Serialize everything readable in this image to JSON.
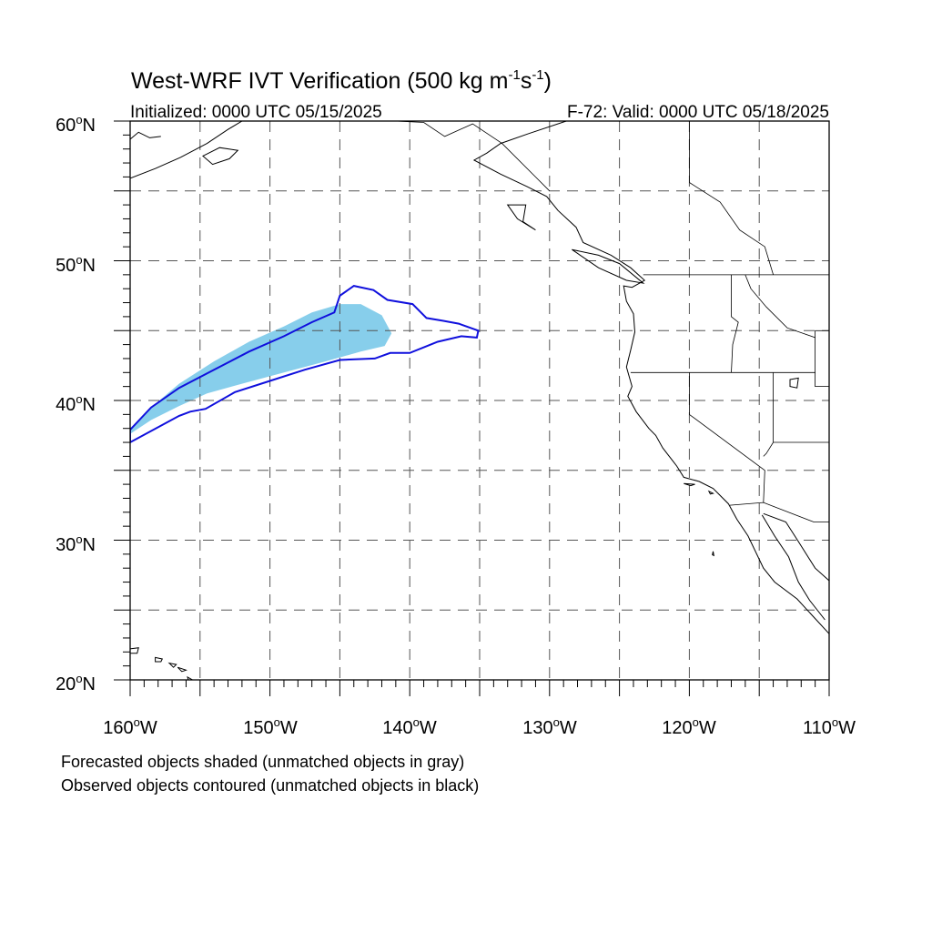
{
  "title": {
    "main": "West-WRF IVT Verification (500 kg m",
    "unit_m_exp": "-1",
    "unit_s": "s",
    "unit_s_exp": "-1",
    "close": ")"
  },
  "subtitle_left": "Initialized: 0000 UTC 05/15/2025",
  "subtitle_right": "F-72: Valid: 0000 UTC 05/18/2025",
  "lat_labels": [
    {
      "deg": "60",
      "hemi": "N",
      "value": 60
    },
    {
      "deg": "50",
      "hemi": "N",
      "value": 50
    },
    {
      "deg": "40",
      "hemi": "N",
      "value": 40
    },
    {
      "deg": "30",
      "hemi": "N",
      "value": 30
    },
    {
      "deg": "20",
      "hemi": "N",
      "value": 20
    }
  ],
  "lon_labels": [
    {
      "deg": "160",
      "hemi": "W",
      "value": -160
    },
    {
      "deg": "150",
      "hemi": "W",
      "value": -150
    },
    {
      "deg": "140",
      "hemi": "W",
      "value": -140
    },
    {
      "deg": "130",
      "hemi": "W",
      "value": -130
    },
    {
      "deg": "120",
      "hemi": "W",
      "value": -120
    },
    {
      "deg": "110",
      "hemi": "W",
      "value": -110
    }
  ],
  "footer": {
    "line1": "Forecasted objects shaded (unmatched objects in gray)",
    "line2": "Observed objects contoured (unmatched objects in black)"
  },
  "map": {
    "lon_range": [
      -160,
      -110
    ],
    "lat_range": [
      20,
      60
    ],
    "grid_lons": [
      -155,
      -150,
      -145,
      -140,
      -135,
      -130,
      -125,
      -120,
      -115
    ],
    "grid_lats": [
      25,
      30,
      35,
      40,
      45,
      50,
      55
    ],
    "forecast_fill_color": "#87ceeb",
    "observed_contour_color": "#1010dd",
    "forecast_object": [
      [
        -160,
        38.0
      ],
      [
        -158.5,
        39.5
      ],
      [
        -156.5,
        41.2
      ],
      [
        -154,
        42.8
      ],
      [
        -151.5,
        44.2
      ],
      [
        -149,
        45.3
      ],
      [
        -147,
        46.3
      ],
      [
        -145,
        46.9
      ],
      [
        -143.5,
        46.9
      ],
      [
        -142,
        46.1
      ],
      [
        -141.3,
        44.8
      ],
      [
        -141.8,
        43.9
      ],
      [
        -143.5,
        43.5
      ],
      [
        -146,
        42.8
      ],
      [
        -149,
        42.0
      ],
      [
        -152,
        41.2
      ],
      [
        -154.5,
        40.5
      ],
      [
        -156.5,
        39.6
      ],
      [
        -158.5,
        38.6
      ],
      [
        -160,
        37.6
      ]
    ],
    "observed_object": [
      [
        -160,
        37.9
      ],
      [
        -158.5,
        39.5
      ],
      [
        -156.5,
        40.9
      ],
      [
        -154,
        42.2
      ],
      [
        -151.5,
        43.5
      ],
      [
        -149,
        44.6
      ],
      [
        -147,
        45.6
      ],
      [
        -145.4,
        46.3
      ],
      [
        -145.0,
        47.5
      ],
      [
        -144.0,
        48.2
      ],
      [
        -142.6,
        47.9
      ],
      [
        -141.6,
        47.2
      ],
      [
        -139.8,
        46.9
      ],
      [
        -138.8,
        45.9
      ],
      [
        -137.6,
        45.7
      ],
      [
        -136.5,
        45.5
      ],
      [
        -135.1,
        45.0
      ],
      [
        -135.2,
        44.5
      ],
      [
        -136.3,
        44.6
      ],
      [
        -138,
        44.2
      ],
      [
        -140,
        43.4
      ],
      [
        -141.4,
        43.4
      ],
      [
        -142.5,
        43.0
      ],
      [
        -145,
        42.9
      ],
      [
        -147.5,
        42.2
      ],
      [
        -150,
        41.4
      ],
      [
        -152.5,
        40.6
      ],
      [
        -154.6,
        39.4
      ],
      [
        -155.7,
        39.2
      ],
      [
        -156.5,
        38.9
      ],
      [
        -160,
        37.0
      ]
    ],
    "coastline": [
      [
        -128.8,
        60.0
      ],
      [
        -131.5,
        59.1
      ],
      [
        -133.5,
        58.4
      ],
      [
        -134.5,
        57.7
      ],
      [
        -135.4,
        57.2
      ],
      [
        -133.5,
        56.2
      ],
      [
        -131.6,
        55.3
      ],
      [
        -130.2,
        54.6
      ],
      [
        -129.4,
        53.6
      ],
      [
        -128.1,
        52.4
      ],
      [
        -127.6,
        51.3
      ],
      [
        -125.6,
        50.4
      ],
      [
        -124.2,
        49.5
      ],
      [
        -123.2,
        48.6
      ],
      [
        -124.1,
        48.1
      ],
      [
        -124.7,
        48.2
      ],
      [
        -124.5,
        47.1
      ],
      [
        -124.0,
        46.2
      ],
      [
        -123.9,
        44.9
      ],
      [
        -124.2,
        43.6
      ],
      [
        -124.5,
        42.4
      ],
      [
        -124.1,
        41.0
      ],
      [
        -124.4,
        40.3
      ],
      [
        -123.8,
        39.2
      ],
      [
        -122.9,
        38.0
      ],
      [
        -122.4,
        37.5
      ],
      [
        -121.9,
        36.6
      ],
      [
        -120.9,
        35.3
      ],
      [
        -120.4,
        34.5
      ],
      [
        -119.3,
        34.2
      ],
      [
        -118.3,
        33.7
      ],
      [
        -117.2,
        32.6
      ],
      [
        -116.6,
        31.5
      ],
      [
        -115.8,
        30.3
      ],
      [
        -114.7,
        28.0
      ],
      [
        -113.9,
        27.0
      ],
      [
        -112.3,
        25.8
      ],
      [
        -111.2,
        24.6
      ],
      [
        -110.0,
        23.3
      ]
    ],
    "baja_gulf_coast": [
      [
        -114.8,
        31.8
      ],
      [
        -113.9,
        30.3
      ],
      [
        -112.9,
        28.8
      ],
      [
        -112.2,
        27.0
      ],
      [
        -111.4,
        25.7
      ],
      [
        -110.3,
        24.3
      ]
    ],
    "mainland_gulf_coast": [
      [
        -114.7,
        31.9
      ],
      [
        -113.1,
        31.3
      ],
      [
        -112.2,
        29.9
      ],
      [
        -111.0,
        28.0
      ],
      [
        -110.0,
        27.1
      ]
    ],
    "alaska_coast": [
      [
        -160,
        55.9
      ],
      [
        -158.2,
        56.6
      ],
      [
        -156.4,
        57.4
      ],
      [
        -154.5,
        58.4
      ],
      [
        -153.0,
        59.4
      ],
      [
        -152.0,
        60.0
      ]
    ],
    "alaska_coast2": [
      [
        -160,
        58.7
      ],
      [
        -159.4,
        59.2
      ],
      [
        -158.6,
        58.8
      ],
      [
        -157.8,
        58.9
      ]
    ],
    "kodiak": [
      [
        -154.8,
        57.5
      ],
      [
        -153.6,
        58.1
      ],
      [
        -152.3,
        57.9
      ],
      [
        -152.9,
        57.3
      ],
      [
        -154.1,
        56.9
      ],
      [
        -154.8,
        57.5
      ]
    ],
    "hawaii": [
      [
        [
          -160.2,
          22.2
        ],
        [
          -159.4,
          22.3
        ],
        [
          -159.5,
          21.9
        ],
        [
          -160.1,
          21.9
        ],
        [
          -160.2,
          22.2
        ]
      ],
      [
        [
          -158.2,
          21.6
        ],
        [
          -157.7,
          21.5
        ],
        [
          -157.8,
          21.3
        ],
        [
          -158.2,
          21.3
        ],
        [
          -158.2,
          21.6
        ]
      ],
      [
        [
          -157.2,
          21.2
        ],
        [
          -156.7,
          21.1
        ],
        [
          -156.9,
          20.9
        ],
        [
          -157.2,
          21.2
        ]
      ],
      [
        [
          -156.6,
          20.9
        ],
        [
          -156.0,
          20.7
        ],
        [
          -156.3,
          20.6
        ],
        [
          -156.6,
          20.9
        ]
      ],
      [
        [
          -155.9,
          20.2
        ],
        [
          -155.0,
          19.7
        ],
        [
          -155.6,
          19.1
        ],
        [
          -155.9,
          20.2
        ]
      ]
    ],
    "haida_gwaii": [
      [
        -133.0,
        54.0
      ],
      [
        -131.7,
        54.0
      ],
      [
        -131.9,
        52.8
      ],
      [
        -131.0,
        52.2
      ],
      [
        -132.3,
        53.0
      ],
      [
        -133.0,
        54.0
      ]
    ],
    "vancouver_island": [
      [
        -128.4,
        50.8
      ],
      [
        -126.5,
        50.4
      ],
      [
        -125.0,
        49.8
      ],
      [
        -123.3,
        48.4
      ],
      [
        -124.5,
        48.6
      ],
      [
        -126.5,
        49.5
      ],
      [
        -128.4,
        50.8
      ]
    ],
    "channel_islands": [
      [
        [
          -120.4,
          34.05
        ],
        [
          -119.6,
          34.0
        ],
        [
          -119.9,
          33.9
        ],
        [
          -120.4,
          34.05
        ]
      ],
      [
        [
          -118.6,
          33.5
        ],
        [
          -118.3,
          33.35
        ],
        [
          -118.5,
          33.3
        ],
        [
          -118.6,
          33.5
        ]
      ]
    ],
    "guadalupe": [
      [
        -118.3,
        29.2
      ],
      [
        -118.25,
        28.9
      ],
      [
        -118.35,
        28.95
      ],
      [
        -118.3,
        29.2
      ]
    ],
    "great_salt_lake": [
      [
        -112.8,
        41.5
      ],
      [
        -112.2,
        41.6
      ],
      [
        -112.3,
        40.9
      ],
      [
        -112.8,
        41.0
      ],
      [
        -112.8,
        41.5
      ]
    ],
    "borders": [
      [
        [
          -123.3,
          49.0
        ],
        [
          -110.0,
          49.0
        ]
      ],
      [
        [
          -124.2,
          42.0
        ],
        [
          -111.0,
          42.0
        ]
      ],
      [
        [
          -117.0,
          49.0
        ],
        [
          -117.0,
          46.0
        ],
        [
          -116.5,
          45.6
        ],
        [
          -116.9,
          44.0
        ],
        [
          -117.0,
          42.0
        ]
      ],
      [
        [
          -120.0,
          42.0
        ],
        [
          -120.0,
          39.0
        ],
        [
          -114.6,
          35.0
        ],
        [
          -114.7,
          32.7
        ]
      ],
      [
        [
          -114.0,
          42.0
        ],
        [
          -114.0,
          37.0
        ],
        [
          -114.5,
          36.2
        ],
        [
          -114.7,
          36.0
        ]
      ],
      [
        [
          -114.0,
          37.0
        ],
        [
          -110.0,
          37.0
        ]
      ],
      [
        [
          -111.0,
          45.0
        ],
        [
          -110.0,
          45.0
        ]
      ],
      [
        [
          -111.0,
          45.0
        ],
        [
          -111.0,
          41.0
        ],
        [
          -110.0,
          41.0
        ]
      ],
      [
        [
          -117.1,
          32.5
        ],
        [
          -114.7,
          32.7
        ],
        [
          -111.1,
          31.3
        ],
        [
          -110.0,
          31.3
        ]
      ],
      [
        [
          -116.0,
          49.0
        ],
        [
          -115.6,
          48.0
        ],
        [
          -114.5,
          46.7
        ],
        [
          -113.0,
          45.2
        ],
        [
          -111.0,
          44.5
        ]
      ],
      [
        [
          -120.0,
          55.6
        ],
        [
          -120.0,
          60.0
        ]
      ],
      [
        [
          -120.0,
          55.6
        ],
        [
          -117.8,
          54.2
        ],
        [
          -116.4,
          52.2
        ],
        [
          -114.6,
          51.0
        ],
        [
          -114.0,
          49.0
        ]
      ],
      [
        [
          -141.0,
          60.0
        ],
        [
          -139.0,
          59.9
        ],
        [
          -137.5,
          58.9
        ],
        [
          -135.5,
          59.8
        ],
        [
          -133.4,
          58.4
        ],
        [
          -131.0,
          56.0
        ],
        [
          -130.0,
          55.0
        ]
      ]
    ]
  }
}
